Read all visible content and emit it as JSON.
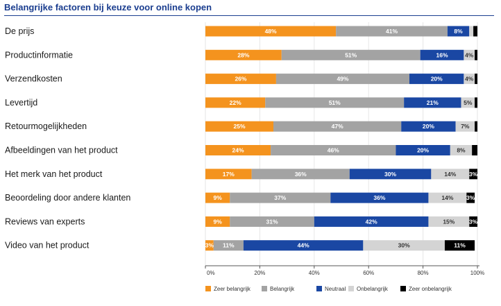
{
  "title": "Belangrijke factoren bij keuze voor online kopen",
  "colors": {
    "title": "#1a3d8f",
    "series": [
      "#f4931e",
      "#a3a3a3",
      "#1a47a3",
      "#d4d4d4",
      "#000000"
    ],
    "label_text": [
      "#ffffff",
      "#ffffff",
      "#ffffff",
      "#333333",
      "#ffffff"
    ]
  },
  "chart_data": {
    "type": "bar",
    "orientation": "horizontal",
    "stacked": true,
    "title": "Belangrijke factoren bij keuze voor online kopen",
    "categories": [
      "De prijs",
      "Productinformatie",
      "Verzendkosten",
      "Levertijd",
      "Retourmogelijkheden",
      "Afbeeldingen van het product",
      "Het merk van het product",
      "Beoordeling door andere klanten",
      "Reviews van experts",
      "Video van het product"
    ],
    "series": [
      {
        "name": "Zeer belangrijk",
        "values": [
          48,
          28,
          26,
          22,
          25,
          24,
          17,
          9,
          9,
          3
        ],
        "labels": [
          "48%",
          "28%",
          "26%",
          "22%",
          "25%",
          "24%",
          "17%",
          "9%",
          "9%",
          "3%"
        ]
      },
      {
        "name": "Belangrijk",
        "values": [
          41,
          51,
          49,
          51,
          47,
          46,
          36,
          37,
          31,
          11
        ],
        "labels": [
          "41%",
          "51%",
          "49%",
          "51%",
          "47%",
          "46%",
          "36%",
          "37%",
          "31%",
          "11%"
        ]
      },
      {
        "name": "Neutraal",
        "values": [
          8,
          16,
          20,
          21,
          20,
          20,
          30,
          36,
          42,
          44
        ],
        "labels": [
          "8%",
          "16%",
          "20%",
          "21%",
          "20%",
          "20%",
          "30%",
          "36%",
          "42%",
          "44%"
        ]
      },
      {
        "name": "Onbelangrijk",
        "values": [
          1.5,
          4,
          4,
          5,
          7,
          8,
          14,
          14,
          15,
          30
        ],
        "labels": [
          "",
          "4%",
          "4%",
          "5%",
          "7%",
          "8%",
          "14%",
          "14%",
          "15%",
          "30%"
        ]
      },
      {
        "name": "Zeer onbelangrijk",
        "values": [
          1.5,
          1,
          1,
          1,
          1,
          2,
          3,
          3,
          3,
          11
        ],
        "labels": [
          "",
          "",
          "",
          "",
          "",
          "",
          "3%",
          "3%",
          "3%",
          "11%"
        ]
      }
    ],
    "xlim": [
      0,
      100
    ],
    "xticks": [
      "0%",
      "20%",
      "40%",
      "60%",
      "80%",
      "100%"
    ],
    "legend": [
      "Zeer belangrijk",
      "Belangrijk",
      "Neutraal",
      "Onbelangrijk",
      "Zeer onbelangrijk"
    ],
    "legend_position": "bottom"
  }
}
